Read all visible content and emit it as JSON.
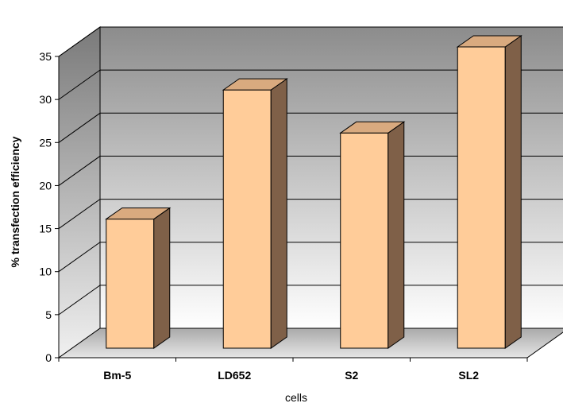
{
  "chart_data": {
    "type": "bar",
    "categories": [
      "Bm-5",
      "LD652",
      "S2",
      "SL2"
    ],
    "values": [
      15,
      30,
      25,
      35
    ],
    "title": "",
    "xlabel": "cells",
    "ylabel": "% transfection efficiency",
    "ylim": [
      0,
      35
    ],
    "yticks": [
      0,
      5,
      10,
      15,
      20,
      25,
      30,
      35
    ],
    "grid": true,
    "legend": "none",
    "colors": {
      "bar_front": "#FFCC99",
      "bar_top": "#D9AA7F",
      "bar_side": "#7F6048",
      "wall_top": "#8C8C8C",
      "wall_bottom": "#FFFFFF",
      "floor": "#BFBFBF"
    }
  }
}
